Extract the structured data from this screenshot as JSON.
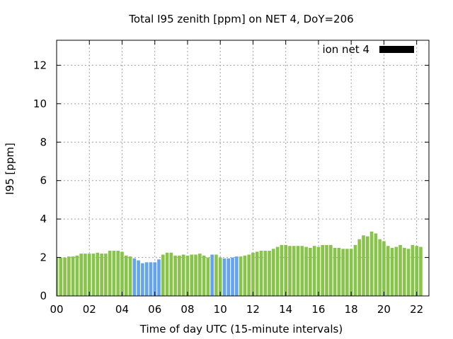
{
  "chart_data": {
    "type": "bar",
    "title": "Total I95 zenith [ppm] on NET 4, DoY=206",
    "xlabel": "Time of day UTC (15-minute intervals)",
    "ylabel": "I95 [ppm]",
    "ylim": [
      0,
      13.3
    ],
    "xlim": [
      0,
      22.75
    ],
    "y_ticks": [
      0,
      2,
      4,
      6,
      8,
      10,
      12
    ],
    "x_ticks": [
      0,
      2,
      4,
      6,
      8,
      10,
      12,
      14,
      16,
      18,
      20,
      22
    ],
    "x_tick_labels": [
      "00",
      "02",
      "04",
      "06",
      "08",
      "10",
      "12",
      "14",
      "16",
      "18",
      "20",
      "22"
    ],
    "grid": true,
    "legend_position": "top-right",
    "series": [
      {
        "name": "ion net 4",
        "x_start": 0,
        "x_step": 0.25,
        "values": [
          2.0,
          2.0,
          2.0,
          2.05,
          2.05,
          2.1,
          2.2,
          2.2,
          2.2,
          2.2,
          2.25,
          2.2,
          2.2,
          2.35,
          2.35,
          2.35,
          2.3,
          2.1,
          2.05,
          1.95,
          1.85,
          1.7,
          1.75,
          1.75,
          1.75,
          1.9,
          2.15,
          2.25,
          2.25,
          2.1,
          2.1,
          2.15,
          2.1,
          2.15,
          2.15,
          2.2,
          2.1,
          2.0,
          2.15,
          2.15,
          2.0,
          1.95,
          1.95,
          2.0,
          2.05,
          2.05,
          2.1,
          2.15,
          2.25,
          2.3,
          2.35,
          2.35,
          2.35,
          2.45,
          2.55,
          2.65,
          2.65,
          2.6,
          2.6,
          2.6,
          2.6,
          2.55,
          2.5,
          2.6,
          2.55,
          2.65,
          2.65,
          2.65,
          2.5,
          2.5,
          2.45,
          2.45,
          2.45,
          2.65,
          2.95,
          3.15,
          3.1,
          3.35,
          3.25,
          2.95,
          2.85,
          2.6,
          2.5,
          2.55,
          2.65,
          2.5,
          2.45,
          2.65,
          2.6,
          2.55
        ],
        "blue_indices": [
          19,
          20,
          21,
          22,
          23,
          24,
          25,
          38,
          41,
          42,
          43,
          44
        ]
      }
    ],
    "colors": {
      "bar_default": "#88c34a",
      "bar_highlight": "#64a3ee",
      "legend_swatch": "#000000",
      "grid": "#a0a0a0",
      "axis": "#000000"
    }
  }
}
